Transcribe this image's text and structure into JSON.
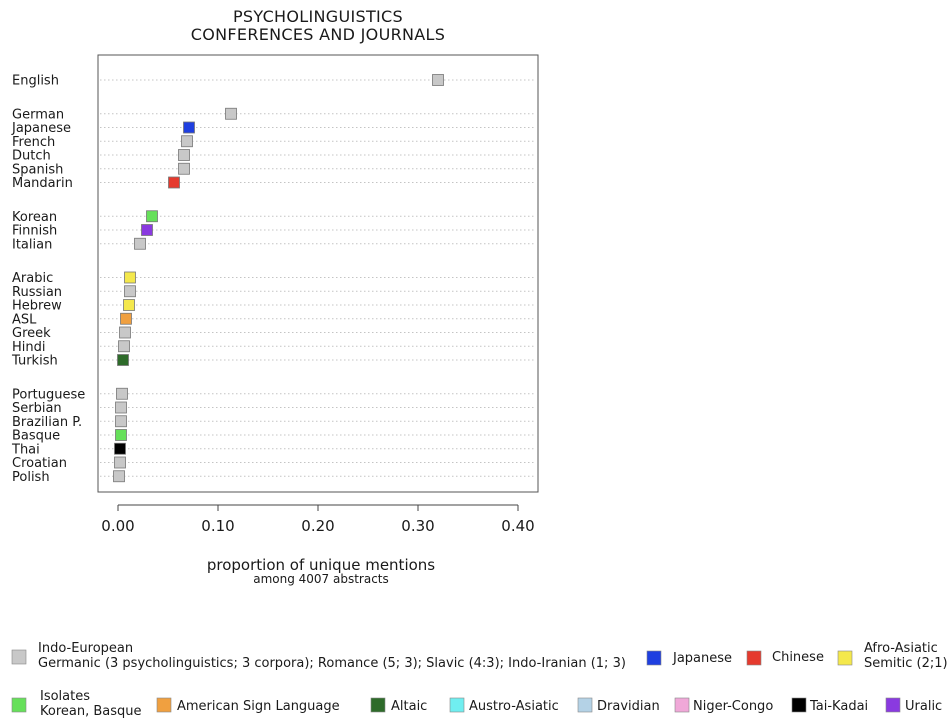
{
  "chart_data": {
    "type": "scatter",
    "title_lines": [
      "PSYCHOLINGUISTICS",
      "CONFERENCES AND JOURNALS"
    ],
    "xlabel": "proportion of unique mentions",
    "xlabel_sub": "among 4007 abstracts",
    "ylabel": "",
    "xlim": [
      -0.02,
      0.42
    ],
    "xticks": [
      0.0,
      0.1,
      0.2,
      0.3,
      0.4
    ],
    "xtick_labels": [
      "0.00",
      "0.10",
      "0.20",
      "0.30",
      "0.40"
    ],
    "grid": "dotted horizontal guide per language",
    "groups": [
      [
        {
          "language": "English",
          "value": 0.32,
          "family": "indo-european"
        }
      ],
      [
        {
          "language": "German",
          "value": 0.113,
          "family": "indo-european"
        },
        {
          "language": "Japanese",
          "value": 0.071,
          "family": "japanese"
        },
        {
          "language": "French",
          "value": 0.069,
          "family": "indo-european"
        },
        {
          "language": "Dutch",
          "value": 0.066,
          "family": "indo-european"
        },
        {
          "language": "Spanish",
          "value": 0.066,
          "family": "indo-european"
        },
        {
          "language": "Mandarin",
          "value": 0.056,
          "family": "chinese"
        }
      ],
      [
        {
          "language": "Korean",
          "value": 0.034,
          "family": "isolates"
        },
        {
          "language": "Finnish",
          "value": 0.029,
          "family": "uralic"
        },
        {
          "language": "Italian",
          "value": 0.022,
          "family": "indo-european"
        }
      ],
      [
        {
          "language": "Arabic",
          "value": 0.012,
          "family": "afro-asiatic"
        },
        {
          "language": "Russian",
          "value": 0.012,
          "family": "indo-european"
        },
        {
          "language": "Hebrew",
          "value": 0.011,
          "family": "afro-asiatic"
        },
        {
          "language": "ASL",
          "value": 0.008,
          "family": "asl"
        },
        {
          "language": "Greek",
          "value": 0.007,
          "family": "indo-european"
        },
        {
          "language": "Hindi",
          "value": 0.006,
          "family": "indo-european"
        },
        {
          "language": "Turkish",
          "value": 0.005,
          "family": "altaic"
        }
      ],
      [
        {
          "language": "Portuguese",
          "value": 0.004,
          "family": "indo-european"
        },
        {
          "language": "Serbian",
          "value": 0.003,
          "family": "indo-european"
        },
        {
          "language": "Brazilian P.",
          "value": 0.003,
          "family": "indo-european"
        },
        {
          "language": "Basque",
          "value": 0.003,
          "family": "isolates"
        },
        {
          "language": "Thai",
          "value": 0.002,
          "family": "tai-kadai"
        },
        {
          "language": "Croatian",
          "value": 0.002,
          "family": "indo-european"
        },
        {
          "language": "Polish",
          "value": 0.001,
          "family": "indo-european"
        }
      ]
    ],
    "families": [
      {
        "id": "indo-european",
        "lines": [
          "Indo-European",
          "Germanic (3 psycholinguistics; 3 corpora); Romance (5; 3); Slavic (4:3); Indo-Iranian (1; 3)"
        ],
        "color": "#c8c8c8"
      },
      {
        "id": "japanese",
        "lines": [
          "Japanese"
        ],
        "color": "#1f3fe0"
      },
      {
        "id": "chinese",
        "lines": [
          "Chinese"
        ],
        "color": "#e53a2e"
      },
      {
        "id": "afro-asiatic",
        "lines": [
          "Afro-Asiatic",
          "Semitic (2;1)"
        ],
        "color": "#f4e84c"
      },
      {
        "id": "isolates",
        "lines": [
          "Isolates",
          "Korean, Basque"
        ],
        "color": "#66e05a"
      },
      {
        "id": "asl",
        "lines": [
          "American Sign Language"
        ],
        "color": "#f0a040"
      },
      {
        "id": "altaic",
        "lines": [
          "Altaic"
        ],
        "color": "#2e6b2a"
      },
      {
        "id": "austro-asiatic",
        "lines": [
          "Austro-Asiatic"
        ],
        "color": "#70eef0"
      },
      {
        "id": "dravidian",
        "lines": [
          "Dravidian"
        ],
        "color": "#b4d2e6"
      },
      {
        "id": "niger-congo",
        "lines": [
          "Niger-Congo"
        ],
        "color": "#f0a8d8"
      },
      {
        "id": "tai-kadai",
        "lines": [
          "Tai-Kadai"
        ],
        "color": "#000000"
      },
      {
        "id": "uralic",
        "lines": [
          "Uralic"
        ],
        "color": "#8a3ae0"
      }
    ]
  }
}
